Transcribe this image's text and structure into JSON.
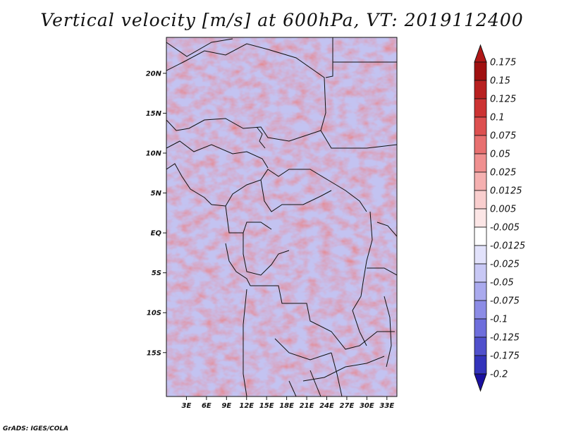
{
  "title": "Vertical velocity [m/s] at 600hPa, VT: 2019112400",
  "credit": "GrADS: IGES/COLA",
  "map": {
    "lon_range": [
      0,
      34.5
    ],
    "lat_range": [
      -20.5,
      24.5
    ],
    "lon_ticks": [
      {
        "value": 3,
        "label": "3E"
      },
      {
        "value": 6,
        "label": "6E"
      },
      {
        "value": 9,
        "label": "9E"
      },
      {
        "value": 12,
        "label": "12E"
      },
      {
        "value": 15,
        "label": "15E"
      },
      {
        "value": 18,
        "label": "18E"
      },
      {
        "value": 21,
        "label": "21E"
      },
      {
        "value": 24,
        "label": "24E"
      },
      {
        "value": 27,
        "label": "27E"
      },
      {
        "value": 30,
        "label": "30E"
      },
      {
        "value": 33,
        "label": "33E"
      }
    ],
    "lat_ticks": [
      {
        "value": 20,
        "label": "20N"
      },
      {
        "value": 15,
        "label": "15N"
      },
      {
        "value": 10,
        "label": "10N"
      },
      {
        "value": 5,
        "label": "5N"
      },
      {
        "value": 0,
        "label": "EQ"
      },
      {
        "value": -5,
        "label": "5S"
      },
      {
        "value": -10,
        "label": "10S"
      },
      {
        "value": -15,
        "label": "15S"
      }
    ]
  },
  "colorbar": {
    "units": "m/s",
    "levels": [
      {
        "label": "0.175",
        "color": "#a01010"
      },
      {
        "label": "0.15",
        "color": "#b82020"
      },
      {
        "label": "0.125",
        "color": "#cc3333"
      },
      {
        "label": "0.1",
        "color": "#dd5050"
      },
      {
        "label": "0.075",
        "color": "#e87070"
      },
      {
        "label": "0.05",
        "color": "#f09090"
      },
      {
        "label": "0.025",
        "color": "#f5b0b0"
      },
      {
        "label": "0.0125",
        "color": "#f9cece"
      },
      {
        "label": "0.005",
        "color": "#fce6e6"
      },
      {
        "label": "-0.005",
        "color": "#ffffff"
      },
      {
        "label": "-0.0125",
        "color": "#e2e2fb"
      },
      {
        "label": "-0.025",
        "color": "#c8c8f5"
      },
      {
        "label": "-0.05",
        "color": "#aaaaee"
      },
      {
        "label": "-0.075",
        "color": "#8c8ce6"
      },
      {
        "label": "-0.1",
        "color": "#6e6edc"
      },
      {
        "label": "-0.125",
        "color": "#5050cc"
      },
      {
        "label": "-0.175",
        "color": "#3333bb"
      },
      {
        "label": "-0.2",
        "color": "#2020aa"
      }
    ],
    "top_color": "#b01818",
    "bottom_color": "#1a10a0"
  }
}
